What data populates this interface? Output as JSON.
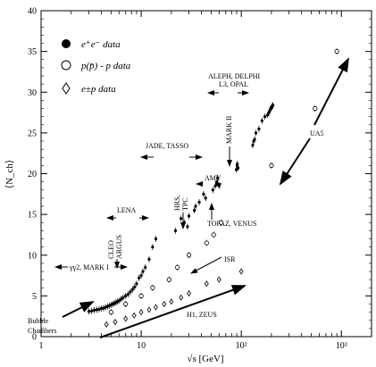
{
  "chart_data": {
    "type": "scatter",
    "title": "",
    "xlabel": "√s  [GeV]",
    "ylabel": "⟨N_ch⟩",
    "xscale": "log",
    "xlim": [
      1,
      2000
    ],
    "ylim": [
      0,
      40
    ],
    "xticks": [
      1,
      10,
      100,
      1000
    ],
    "xtick_labels": [
      "1",
      "10",
      "10²",
      "10³"
    ],
    "yticks": [
      0,
      5,
      10,
      15,
      20,
      25,
      30,
      35,
      40
    ],
    "ytick_labels": [
      "0",
      "5",
      "10",
      "15",
      "20",
      "25",
      "30",
      "35",
      "40"
    ],
    "grid": false,
    "legend_position": "top-left",
    "legend": [
      {
        "marker": "filled-circle",
        "label": "e⁺e⁻ data"
      },
      {
        "marker": "open-circle",
        "label": "p(p̄) - p data"
      },
      {
        "marker": "open-diamond",
        "label": "e±p data"
      }
    ],
    "series": [
      {
        "name": "e⁺e⁻ data",
        "marker": "filled-circle",
        "points": [
          [
            3.0,
            3.1
          ],
          [
            3.2,
            3.15
          ],
          [
            3.4,
            3.25
          ],
          [
            3.6,
            3.3
          ],
          [
            3.8,
            3.35
          ],
          [
            4.0,
            3.45
          ],
          [
            4.2,
            3.5
          ],
          [
            4.4,
            3.6
          ],
          [
            4.6,
            3.7
          ],
          [
            4.8,
            3.8
          ],
          [
            5.0,
            3.9
          ],
          [
            5.2,
            4.0
          ],
          [
            5.4,
            4.1
          ],
          [
            5.6,
            4.2
          ],
          [
            5.8,
            4.3
          ],
          [
            6.0,
            4.4
          ],
          [
            6.3,
            4.6
          ],
          [
            6.6,
            4.8
          ],
          [
            7.0,
            5.0
          ],
          [
            7.4,
            5.2
          ],
          [
            7.8,
            5.5
          ],
          [
            8.2,
            5.8
          ],
          [
            8.6,
            6.1
          ],
          [
            9.0,
            6.5
          ],
          [
            9.5,
            7.2
          ],
          [
            10.0,
            7.5
          ],
          [
            10.4,
            8.0
          ],
          [
            11.0,
            8.5
          ],
          [
            12.0,
            9.5
          ],
          [
            13.0,
            11.0
          ],
          [
            14.0,
            12.0
          ],
          [
            22.0,
            13.0
          ],
          [
            25.0,
            14.5
          ],
          [
            27.0,
            14.0
          ],
          [
            29.0,
            13.5
          ],
          [
            30.0,
            14.8
          ],
          [
            34.0,
            15.5
          ],
          [
            35.0,
            16.0
          ],
          [
            38.0,
            16.5
          ],
          [
            42.0,
            17.5
          ],
          [
            44.0,
            17.0
          ],
          [
            52.0,
            18.0
          ],
          [
            55.0,
            18.5
          ],
          [
            57.0,
            19.0
          ],
          [
            58.0,
            19.5
          ],
          [
            60.0,
            18.5
          ],
          [
            89.0,
            20.5
          ],
          [
            91.0,
            21.0
          ],
          [
            91.2,
            21.2
          ],
          [
            93.0,
            20.7
          ],
          [
            130.0,
            23.5
          ],
          [
            133.0,
            24.0
          ],
          [
            136.0,
            24.2
          ],
          [
            140.0,
            25.0
          ],
          [
            150.0,
            25.5
          ],
          [
            161.0,
            26.5
          ],
          [
            172.0,
            27.0
          ],
          [
            183.0,
            27.2
          ],
          [
            189.0,
            27.5
          ],
          [
            192.0,
            27.7
          ],
          [
            196.0,
            28.0
          ],
          [
            200.0,
            28.1
          ],
          [
            202.0,
            28.2
          ],
          [
            205.0,
            28.3
          ],
          [
            207.0,
            28.4
          ]
        ]
      },
      {
        "name": "p(p̄) - p data",
        "marker": "open-circle",
        "points": [
          [
            5.0,
            3.0
          ],
          [
            7.0,
            4.0
          ],
          [
            10.0,
            5.0
          ],
          [
            13.0,
            6.0
          ],
          [
            19.0,
            7.0
          ],
          [
            23.0,
            8.5
          ],
          [
            30.0,
            10.0
          ],
          [
            45.0,
            11.5
          ],
          [
            53.0,
            12.5
          ],
          [
            63.0,
            14.0
          ],
          [
            200.0,
            21.0
          ],
          [
            546.0,
            28.0
          ],
          [
            900.0,
            35.0
          ]
        ]
      },
      {
        "name": "e±p data",
        "marker": "open-diamond",
        "points": [
          [
            4.5,
            1.5
          ],
          [
            5.5,
            1.8
          ],
          [
            7.0,
            2.2
          ],
          [
            8.5,
            2.6
          ],
          [
            10.0,
            3.0
          ],
          [
            12.0,
            3.3
          ],
          [
            14.0,
            3.6
          ],
          [
            17.0,
            4.0
          ],
          [
            20.0,
            4.3
          ],
          [
            25.0,
            4.8
          ],
          [
            30.0,
            5.3
          ],
          [
            45.0,
            6.5
          ],
          [
            60.0,
            7.0
          ],
          [
            100.0,
            8.0
          ]
        ]
      }
    ],
    "annotations": [
      {
        "text": "γγ2, MARK I"
      },
      {
        "text": "Bubble Chambers"
      },
      {
        "text": "LENA"
      },
      {
        "text": "CLEO ARGUS"
      },
      {
        "text": "JADE, TASSO"
      },
      {
        "text": "HRS, TPC"
      },
      {
        "text": "AMY"
      },
      {
        "text": "MARK II"
      },
      {
        "text": "TOPAZ, VENUS"
      },
      {
        "text": "ISR"
      },
      {
        "text": "ALEPH, DELPHI L3, OPAL"
      },
      {
        "text": "UA5"
      },
      {
        "text": "H1, ZEUS"
      }
    ]
  }
}
